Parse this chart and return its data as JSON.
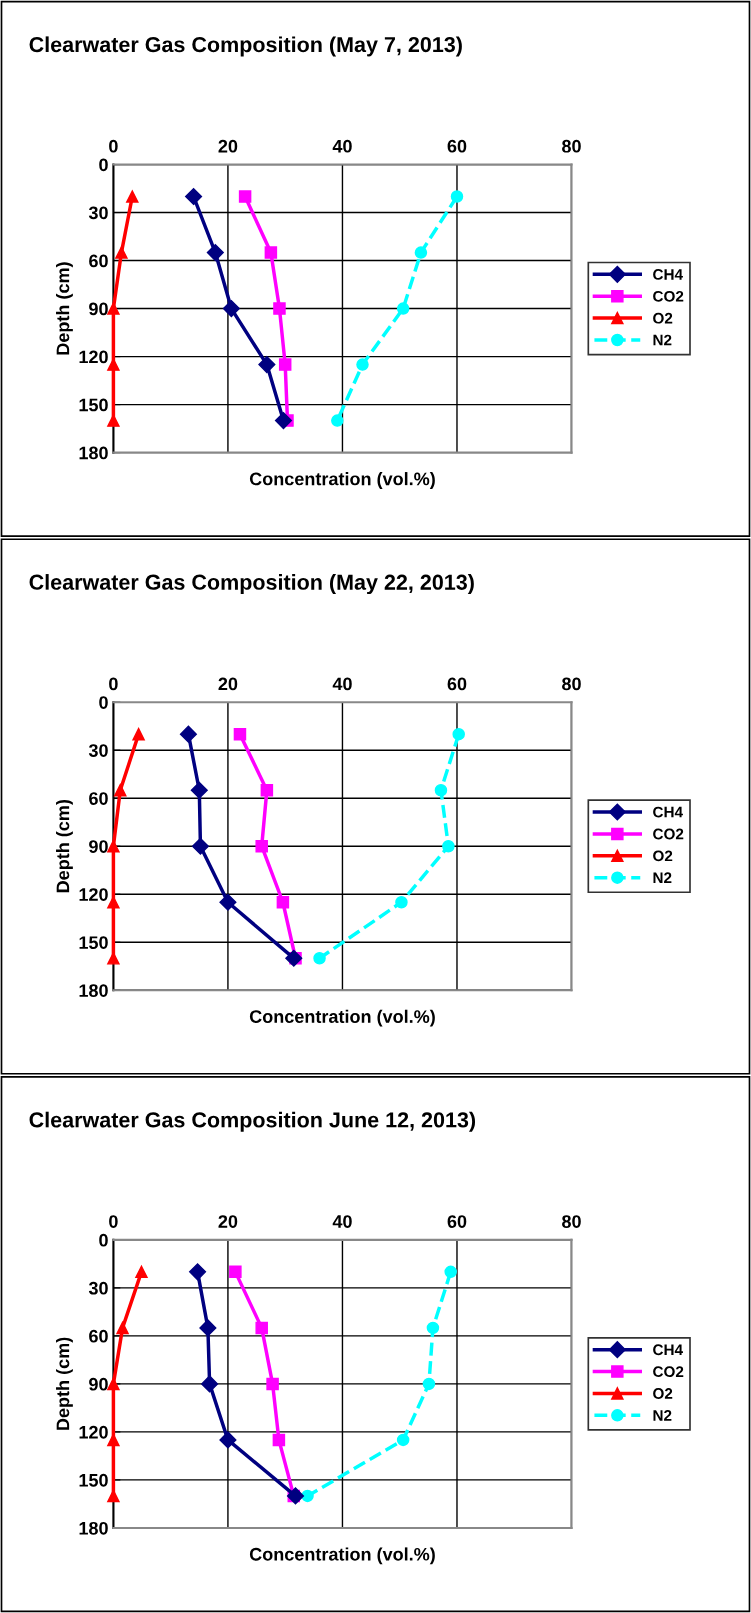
{
  "chart_data": [
    {
      "type": "line",
      "title": "Clearwater Gas Composition (May 7, 2013)",
      "xlabel": "Concentration (vol.%)",
      "ylabel": "Depth (cm)",
      "xlim": [
        0,
        80
      ],
      "xticks": [
        0,
        20,
        40,
        60,
        80
      ],
      "ylim": [
        180,
        0
      ],
      "yticks": [
        0,
        30,
        60,
        90,
        120,
        150,
        180
      ],
      "grid": true,
      "legend": "right",
      "series": [
        {
          "name": "CH4",
          "color": "#000080",
          "marker": "diamond",
          "line_style": "solid",
          "x": [
            14,
            17.8,
            20.6,
            26.8,
            29.7
          ],
          "values": [
            20,
            55,
            90,
            125,
            160
          ]
        },
        {
          "name": "CO2",
          "color": "#ff00ff",
          "marker": "square",
          "line_style": "solid",
          "x": [
            23,
            27.5,
            29,
            30,
            30.4
          ],
          "values": [
            20,
            55,
            90,
            125,
            160
          ]
        },
        {
          "name": "O2",
          "color": "#ff0000",
          "marker": "triangle",
          "line_style": "solid",
          "x": [
            3.3,
            1.4,
            0,
            0,
            0
          ],
          "values": [
            20,
            55,
            90,
            125,
            160
          ]
        },
        {
          "name": "N2",
          "color": "#00ffff",
          "marker": "circle",
          "line_style": "dashed",
          "x": [
            60,
            53.7,
            50.6,
            43.5,
            39.1
          ],
          "values": [
            20,
            55,
            90,
            125,
            160
          ]
        }
      ]
    },
    {
      "type": "line",
      "title": "Clearwater Gas Composition (May 22, 2013)",
      "xlabel": "Concentration (vol.%)",
      "ylabel": "Depth (cm)",
      "xlim": [
        0,
        80
      ],
      "xticks": [
        0,
        20,
        40,
        60,
        80
      ],
      "ylim": [
        180,
        0
      ],
      "yticks": [
        0,
        30,
        60,
        90,
        120,
        150,
        180
      ],
      "grid": true,
      "legend": "right",
      "series": [
        {
          "name": "CH4",
          "color": "#000080",
          "marker": "diamond",
          "line_style": "solid",
          "x": [
            13.1,
            15,
            15.2,
            20,
            31.5
          ],
          "values": [
            20,
            55,
            90,
            125,
            160
          ]
        },
        {
          "name": "CO2",
          "color": "#ff00ff",
          "marker": "square",
          "line_style": "solid",
          "x": [
            22.1,
            26.8,
            25.9,
            29.6,
            31.8
          ],
          "values": [
            20,
            55,
            90,
            125,
            160
          ]
        },
        {
          "name": "O2",
          "color": "#ff0000",
          "marker": "triangle",
          "line_style": "solid",
          "x": [
            4.4,
            1.2,
            0,
            0,
            0
          ],
          "values": [
            20,
            55,
            90,
            125,
            160
          ]
        },
        {
          "name": "N2",
          "color": "#00ffff",
          "marker": "circle",
          "line_style": "dashed",
          "x": [
            60.3,
            57.2,
            58.5,
            50.3,
            36
          ],
          "values": [
            20,
            55,
            90,
            125,
            160
          ]
        }
      ]
    },
    {
      "type": "line",
      "title": "Clearwater Gas Composition June 12, 2013)",
      "xlabel": "Concentration (vol.%)",
      "ylabel": "Depth (cm)",
      "xlim": [
        0,
        80
      ],
      "xticks": [
        0,
        20,
        40,
        60,
        80
      ],
      "ylim": [
        180,
        0
      ],
      "yticks": [
        0,
        30,
        60,
        90,
        120,
        150,
        180
      ],
      "grid": true,
      "legend": "right",
      "series": [
        {
          "name": "CH4",
          "color": "#000080",
          "marker": "diamond",
          "line_style": "solid",
          "x": [
            14.7,
            16.5,
            16.8,
            20,
            31.8
          ],
          "values": [
            20,
            55,
            90,
            125,
            160
          ]
        },
        {
          "name": "CO2",
          "color": "#ff00ff",
          "marker": "square",
          "line_style": "solid",
          "x": [
            21.3,
            25.9,
            27.8,
            28.9,
            31.5
          ],
          "values": [
            20,
            55,
            90,
            125,
            160
          ]
        },
        {
          "name": "O2",
          "color": "#ff0000",
          "marker": "triangle",
          "line_style": "solid",
          "x": [
            4.9,
            1.6,
            0,
            0,
            0
          ],
          "values": [
            20,
            55,
            90,
            125,
            160
          ]
        },
        {
          "name": "N2",
          "color": "#00ffff",
          "marker": "circle",
          "line_style": "dashed",
          "x": [
            58.9,
            55.8,
            55.1,
            50.6,
            33.9
          ],
          "values": [
            20,
            55,
            90,
            125,
            160
          ]
        }
      ]
    }
  ]
}
